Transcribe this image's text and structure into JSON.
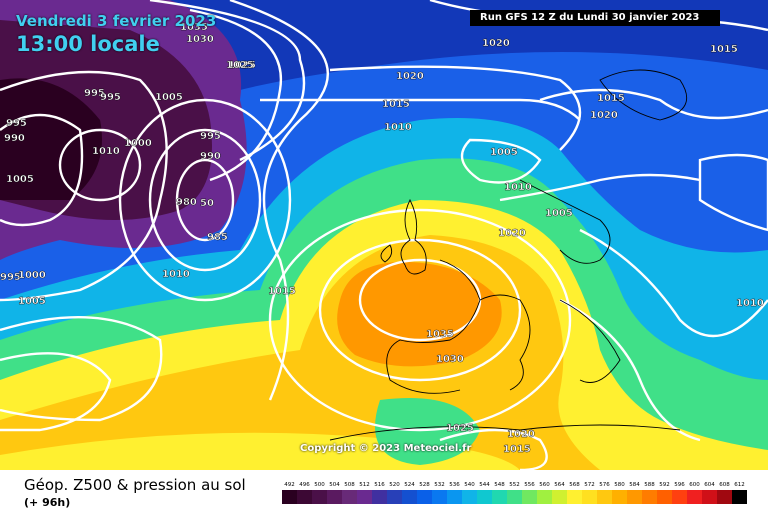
{
  "header": {
    "date_line1": "Vendredi 3 fevrier 2023",
    "date_line2": "13:00 locale",
    "run_info": "Run GFS 12 Z du Lundi 30 janvier 2023"
  },
  "map": {
    "copyright": "Copyright © 2023 Meteociel.fr",
    "isobar_labels": [
      "1035",
      "1030",
      "1025",
      "995",
      "995",
      "1005",
      "995",
      "990",
      "1005",
      "1010",
      "1000",
      "995",
      "990",
      "980",
      "50",
      "985",
      "1010",
      "995",
      "1000",
      "1005",
      "1015",
      "1020",
      "1025",
      "1020",
      "1015",
      "1010",
      "1005",
      "1010",
      "1005",
      "1020",
      "1035",
      "1030",
      "1025",
      "1020",
      "1015",
      "1015",
      "1020",
      "1015",
      "1010"
    ],
    "colors": {
      "low_height": "#3a0032",
      "mid_blue": "#1060f0",
      "cyan": "#10c8d8",
      "green": "#60e060",
      "yellow": "#ffe840",
      "orange": "#ffa000",
      "isobar": "#ffffff",
      "coast": "#000000"
    }
  },
  "footer": {
    "title": "Géop. Z500 & pression au sol",
    "lead": "(+ 96h)"
  },
  "legend": {
    "labels": [
      "492",
      "496",
      "500",
      "504",
      "508",
      "512",
      "516",
      "520",
      "524",
      "528",
      "532",
      "536",
      "540",
      "544",
      "548",
      "552",
      "556",
      "560",
      "564",
      "568",
      "572",
      "576",
      "580",
      "584",
      "588",
      "592",
      "596",
      "600",
      "604",
      "608",
      "612"
    ],
    "colors": [
      "#2a0020",
      "#3c0834",
      "#4a1048",
      "#5a1a60",
      "#682a78",
      "#6a2a90",
      "#4030a0",
      "#2840b8",
      "#1450d0",
      "#0a60e8",
      "#0a78f0",
      "#0a96f0",
      "#10b4e8",
      "#10c8d0",
      "#20d8b0",
      "#40e088",
      "#70e860",
      "#a0f040",
      "#d0f030",
      "#fff030",
      "#ffe020",
      "#ffc810",
      "#ffb000",
      "#ff9800",
      "#ff7c00",
      "#ff6000",
      "#ff4010",
      "#f02020",
      "#d01018",
      "#a00810",
      "#000000"
    ]
  }
}
